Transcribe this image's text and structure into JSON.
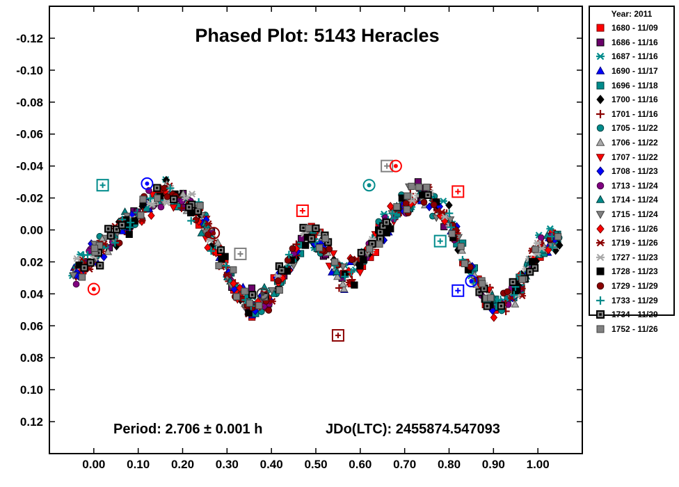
{
  "chart_data": {
    "type": "scatter",
    "title": "Phased Plot: 5143 Heracles",
    "annotation_left": "Period: 2.706 ± 0.001 h",
    "annotation_right": "JDo(LTC): 2455874.547093",
    "xlim": [
      -0.1,
      1.1
    ],
    "ylim": [
      0.14,
      -0.14
    ],
    "y_reversed": true,
    "x_ticks": [
      "0.00",
      "0.10",
      "0.20",
      "0.30",
      "0.40",
      "0.50",
      "0.60",
      "0.70",
      "0.80",
      "0.90",
      "1.00"
    ],
    "y_ticks": [
      "-0.12",
      "-0.10",
      "-0.08",
      "-0.06",
      "-0.04",
      "-0.02",
      "0.00",
      "0.02",
      "0.04",
      "0.06",
      "0.08",
      "0.10",
      "0.12"
    ],
    "legend_title": "Year: 2011",
    "legend_placement": "right-outside",
    "grid": false,
    "series": [
      {
        "name": "1680 - 11/09",
        "marker": "square",
        "color": "#ff0000",
        "stroke": "#7a0000"
      },
      {
        "name": "1686 - 11/16",
        "marker": "square",
        "color": "#6a006a",
        "stroke": "#000000"
      },
      {
        "name": "1687 - 11/16",
        "marker": "asterisk",
        "color": "#008b8b",
        "stroke": "#008b8b"
      },
      {
        "name": "1690 - 11/17",
        "marker": "triangle",
        "color": "#0000ff",
        "stroke": "#000080"
      },
      {
        "name": "1696 - 11/18",
        "marker": "square",
        "color": "#008b8b",
        "stroke": "#004040"
      },
      {
        "name": "1700 - 11/16",
        "marker": "diamond",
        "color": "#000000",
        "stroke": "#000000"
      },
      {
        "name": "1701 - 11/16",
        "marker": "plus",
        "color": "#8b0000",
        "stroke": "#8b0000"
      },
      {
        "name": "1705 - 11/22",
        "marker": "circle",
        "color": "#008b8b",
        "stroke": "#004040"
      },
      {
        "name": "1706 - 11/22",
        "marker": "triangle",
        "color": "#a9a9a9",
        "stroke": "#505050"
      },
      {
        "name": "1707 - 11/22",
        "marker": "triangle-down",
        "color": "#ff0000",
        "stroke": "#7a0000"
      },
      {
        "name": "1708 - 11/23",
        "marker": "diamond",
        "color": "#0000ff",
        "stroke": "#000080"
      },
      {
        "name": "1713 - 11/24",
        "marker": "circle",
        "color": "#800080",
        "stroke": "#400040"
      },
      {
        "name": "1714 - 11/24",
        "marker": "triangle",
        "color": "#008b8b",
        "stroke": "#004040"
      },
      {
        "name": "1715 - 11/24",
        "marker": "triangle-down",
        "color": "#808080",
        "stroke": "#404040"
      },
      {
        "name": "1716 - 11/26",
        "marker": "diamond",
        "color": "#ff0000",
        "stroke": "#7a0000"
      },
      {
        "name": "1719 - 11/26",
        "marker": "asterisk",
        "color": "#8b0000",
        "stroke": "#8b0000"
      },
      {
        "name": "1727 - 11/23",
        "marker": "asterisk",
        "color": "#a9a9a9",
        "stroke": "#a9a9a9"
      },
      {
        "name": "1728 - 11/23",
        "marker": "square",
        "color": "#000000",
        "stroke": "#000000"
      },
      {
        "name": "1729 - 11/29",
        "marker": "circle",
        "color": "#8b0000",
        "stroke": "#400000"
      },
      {
        "name": "1733 - 11/29",
        "marker": "plus",
        "color": "#008b8b",
        "stroke": "#008b8b"
      },
      {
        "name": "1734 - 11/29",
        "marker": "square-dot",
        "color": "#808080",
        "stroke": "#000000"
      },
      {
        "name": "1752 - 11/26",
        "marker": "square",
        "color": "#808080",
        "stroke": "#404040"
      }
    ],
    "curve": {
      "description": "all series trace the same phased lightcurve; points scatter around these phase/magnitude values",
      "x": [
        -0.05,
        -0.02,
        0.0,
        0.04,
        0.08,
        0.12,
        0.16,
        0.2,
        0.24,
        0.28,
        0.32,
        0.36,
        0.4,
        0.44,
        0.48,
        0.52,
        0.56,
        0.6,
        0.64,
        0.68,
        0.72,
        0.76,
        0.8,
        0.84,
        0.88,
        0.92,
        0.96,
        1.0,
        1.04
      ],
      "y": [
        0.03,
        0.022,
        0.015,
        0.005,
        -0.005,
        -0.015,
        -0.022,
        -0.02,
        -0.008,
        0.015,
        0.038,
        0.048,
        0.042,
        0.02,
        0.002,
        0.01,
        0.03,
        0.022,
        0.005,
        -0.012,
        -0.022,
        -0.02,
        -0.005,
        0.02,
        0.042,
        0.048,
        0.035,
        0.012,
        0.005
      ]
    },
    "highlighted_points": [
      {
        "x": 0.02,
        "y": -0.028,
        "marker": "open-square",
        "color": "#008b8b"
      },
      {
        "x": 0.12,
        "y": -0.029,
        "marker": "open-circle",
        "color": "#0000ff"
      },
      {
        "x": 0.0,
        "y": 0.037,
        "marker": "open-circle",
        "color": "#ff0000"
      },
      {
        "x": 0.27,
        "y": 0.002,
        "marker": "open-circle",
        "color": "#8b0000"
      },
      {
        "x": 0.33,
        "y": 0.015,
        "marker": "open-square",
        "color": "#808080"
      },
      {
        "x": 0.47,
        "y": -0.012,
        "marker": "open-square",
        "color": "#ff0000"
      },
      {
        "x": 0.55,
        "y": 0.066,
        "marker": "open-square",
        "color": "#8b0000"
      },
      {
        "x": 0.62,
        "y": -0.028,
        "marker": "open-circle",
        "color": "#008b8b"
      },
      {
        "x": 0.66,
        "y": -0.04,
        "marker": "open-square",
        "color": "#808080"
      },
      {
        "x": 0.68,
        "y": -0.04,
        "marker": "open-circle",
        "color": "#ff0000"
      },
      {
        "x": 0.82,
        "y": -0.024,
        "marker": "open-square",
        "color": "#ff0000"
      },
      {
        "x": 0.78,
        "y": 0.007,
        "marker": "open-square",
        "color": "#008b8b"
      },
      {
        "x": 0.82,
        "y": 0.038,
        "marker": "open-square",
        "color": "#0000ff"
      },
      {
        "x": 0.85,
        "y": 0.032,
        "marker": "open-circle",
        "color": "#0000ff"
      },
      {
        "x": 0.38,
        "y": 0.04,
        "marker": "open-circle",
        "color": "#404040"
      }
    ]
  }
}
